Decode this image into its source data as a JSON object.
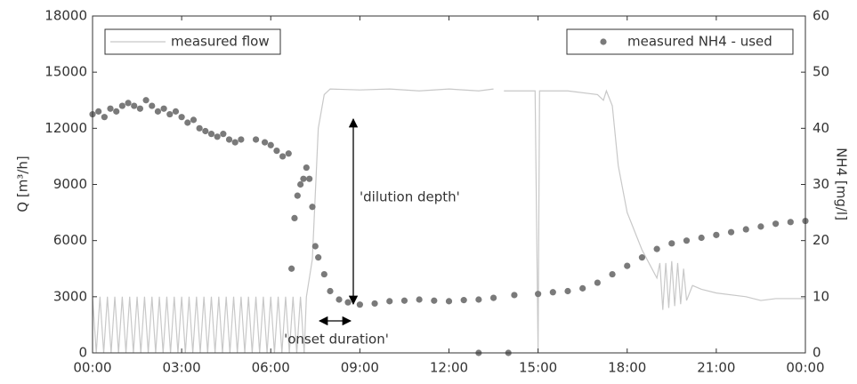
{
  "chart_data": {
    "type": "line-scatter",
    "ylabel": "Q [m³/h]",
    "y2label": "NH4 [mg/l]",
    "xlim": [
      0,
      24
    ],
    "ylim": [
      0,
      18000
    ],
    "y2lim": [
      0,
      60
    ],
    "xticks": [
      {
        "value": 0,
        "label": "00:00"
      },
      {
        "value": 3,
        "label": "03:00"
      },
      {
        "value": 6,
        "label": "06:00"
      },
      {
        "value": 9,
        "label": "09:00"
      },
      {
        "value": 12,
        "label": "12:00"
      },
      {
        "value": 15,
        "label": "15:00"
      },
      {
        "value": 18,
        "label": "18:00"
      },
      {
        "value": 21,
        "label": "21:00"
      },
      {
        "value": 24,
        "label": "00:00"
      }
    ],
    "yticks": [
      0,
      3000,
      6000,
      9000,
      12000,
      15000,
      18000
    ],
    "y2ticks": [
      0,
      10,
      20,
      30,
      40,
      50,
      60
    ],
    "annotations": [
      "'dilution depth'",
      "'onset duration'"
    ],
    "series": [
      {
        "name": "measured flow",
        "type": "line",
        "color": "#c8c8c8",
        "x": [
          0,
          0.125,
          0.25,
          0.375,
          0.5,
          0.625,
          0.75,
          0.875,
          1,
          1.125,
          1.25,
          1.375,
          1.5,
          1.625,
          1.75,
          1.875,
          2,
          2.125,
          2.25,
          2.375,
          2.5,
          2.625,
          2.75,
          2.875,
          3,
          3.125,
          3.25,
          3.375,
          3.5,
          3.625,
          3.75,
          3.875,
          4,
          4.125,
          4.25,
          4.375,
          4.5,
          4.625,
          4.75,
          4.875,
          5,
          5.125,
          5.25,
          5.375,
          5.5,
          5.625,
          5.75,
          5.875,
          6,
          6.125,
          6.25,
          6.375,
          6.5,
          6.625,
          6.75,
          6.875,
          7,
          7.125,
          7.2,
          7.4,
          7.6,
          7.8,
          8,
          9,
          10,
          11,
          12,
          13,
          13.5,
          13.55,
          13.85,
          14.9,
          15,
          15.05,
          16,
          17,
          17.2,
          17.3,
          17.5,
          17.7,
          18,
          18.5,
          19,
          19.1,
          19.2,
          19.3,
          19.4,
          19.5,
          19.6,
          19.7,
          19.8,
          19.9,
          20,
          20.2,
          20.5,
          21,
          22,
          22.5,
          23,
          24
        ],
        "values": [
          3000,
          0,
          3000,
          0,
          3000,
          0,
          3000,
          0,
          3000,
          0,
          3000,
          0,
          3000,
          0,
          3000,
          0,
          3000,
          0,
          3000,
          0,
          3000,
          0,
          3000,
          0,
          3000,
          0,
          3000,
          0,
          3000,
          0,
          3000,
          0,
          3000,
          0,
          3000,
          0,
          3000,
          0,
          3000,
          0,
          3000,
          0,
          3000,
          0,
          3000,
          0,
          3000,
          0,
          3000,
          0,
          3000,
          0,
          3000,
          0,
          3000,
          0,
          3000,
          0,
          3000,
          5000,
          12000,
          13800,
          14100,
          14050,
          14100,
          14000,
          14100,
          14000,
          14100,
          null,
          14000,
          14000,
          0,
          14000,
          14000,
          13800,
          13500,
          14000,
          13200,
          10000,
          7500,
          5500,
          4000,
          4800,
          2300,
          4800,
          2400,
          4900,
          2500,
          4800,
          2600,
          4500,
          2800,
          3600,
          3400,
          3200,
          3000,
          2800,
          2900,
          2900
        ]
      },
      {
        "name": "measured NH4 - used",
        "type": "scatter",
        "axis": "y2",
        "color": "#7a7a7a",
        "x": [
          0,
          0.2,
          0.4,
          0.6,
          0.8,
          1,
          1.2,
          1.4,
          1.6,
          1.8,
          2,
          2.2,
          2.4,
          2.6,
          2.8,
          3,
          3.2,
          3.4,
          3.6,
          3.8,
          4,
          4.2,
          4.4,
          4.6,
          4.8,
          5,
          5.5,
          5.8,
          6,
          6.2,
          6.4,
          6.6,
          6.7,
          6.8,
          6.9,
          7,
          7.1,
          7.2,
          7.3,
          7.4,
          7.5,
          7.6,
          7.8,
          8,
          8.3,
          8.6,
          9,
          9.5,
          10,
          10.5,
          11,
          11.5,
          12,
          12.5,
          13,
          13,
          13.5,
          14,
          14.2,
          15,
          15.5,
          16,
          16.5,
          17,
          17.5,
          18,
          18.5,
          19,
          19.5,
          20,
          20.5,
          21,
          21.5,
          22,
          22.5,
          23,
          23.5,
          24
        ],
        "values": [
          42.5,
          43,
          42,
          43.5,
          43,
          44,
          44.5,
          44,
          43.5,
          45,
          44,
          43,
          43.5,
          42.5,
          43,
          42,
          41,
          41.5,
          40,
          39.5,
          39,
          38.5,
          39,
          38,
          37.5,
          38,
          38,
          37.5,
          37,
          36,
          35,
          35.5,
          15,
          24,
          28,
          30,
          31,
          33,
          31,
          26,
          19,
          17,
          14,
          11,
          9.5,
          9,
          8.6,
          8.8,
          9.2,
          9.3,
          9.5,
          9.3,
          9.2,
          9.4,
          0,
          9.5,
          9.8,
          0,
          10.3,
          10.5,
          10.8,
          11,
          11.5,
          12.5,
          14,
          15.5,
          17,
          18.5,
          19.5,
          20,
          20.5,
          21,
          21.5,
          22,
          22.5,
          23,
          23.3,
          23.5
        ]
      }
    ]
  }
}
